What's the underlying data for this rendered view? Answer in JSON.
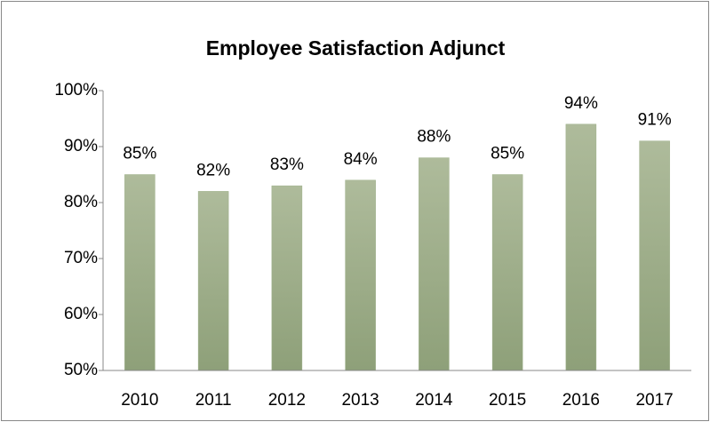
{
  "chart_data": {
    "type": "bar",
    "title": "Employee Satisfaction Adjunct",
    "categories": [
      "2010",
      "2011",
      "2012",
      "2013",
      "2014",
      "2015",
      "2016",
      "2017"
    ],
    "values": [
      85,
      82,
      83,
      84,
      88,
      85,
      94,
      91
    ],
    "value_labels": [
      "85%",
      "82%",
      "83%",
      "84%",
      "88%",
      "85%",
      "94%",
      "91%"
    ],
    "color": "#9caf88",
    "ylim": [
      50,
      100
    ],
    "yticks": [
      {
        "value": 50,
        "label": "50%"
      },
      {
        "value": 60,
        "label": "60%"
      },
      {
        "value": 70,
        "label": "70%"
      },
      {
        "value": 80,
        "label": "80%"
      },
      {
        "value": 90,
        "label": "90%"
      },
      {
        "value": 100,
        "label": "100%"
      }
    ],
    "grid": false
  }
}
